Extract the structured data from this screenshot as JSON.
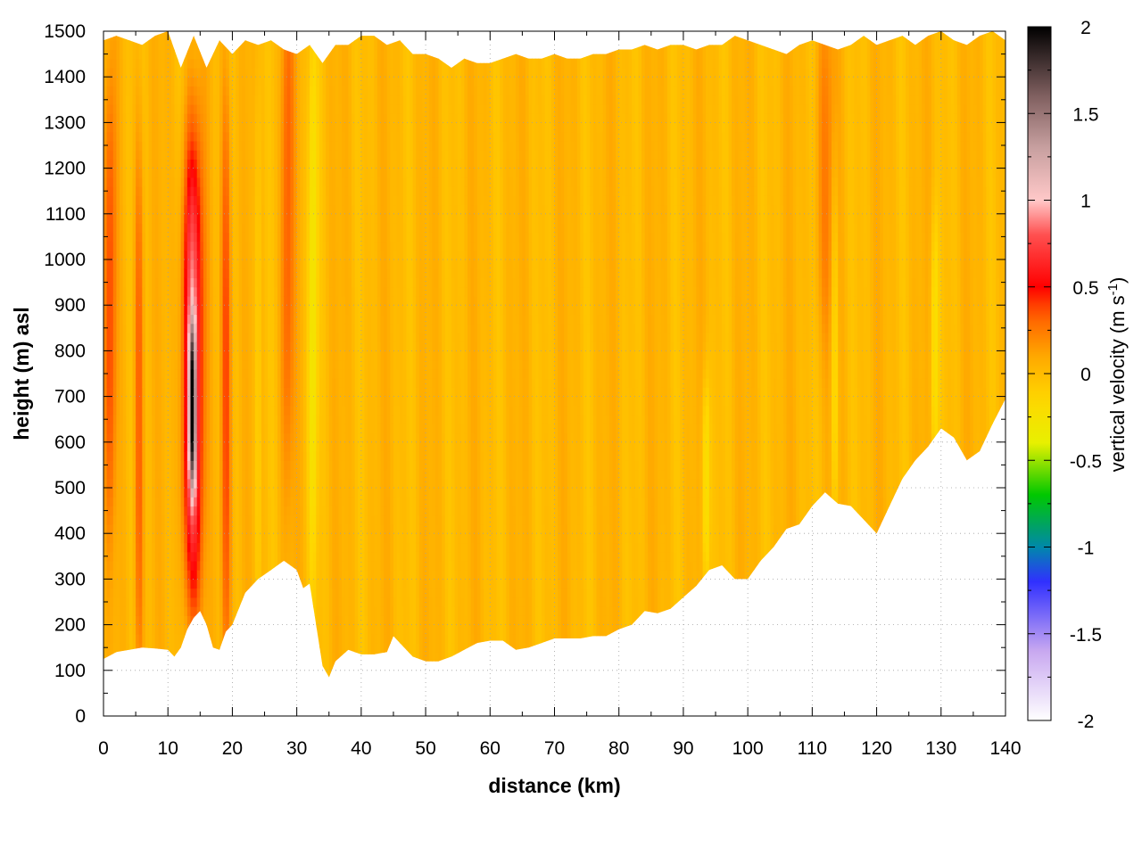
{
  "chart_data": {
    "type": "heatmap",
    "title": "",
    "xlabel": "distance (km)",
    "ylabel": "height (m) asl",
    "xlim": [
      0,
      140
    ],
    "ylim": [
      0,
      1500
    ],
    "x_ticks": [
      "0",
      "10",
      "20",
      "30",
      "40",
      "50",
      "60",
      "70",
      "80",
      "90",
      "100",
      "110",
      "120",
      "130",
      "140"
    ],
    "y_ticks": [
      "0",
      "100",
      "200",
      "300",
      "400",
      "500",
      "600",
      "700",
      "800",
      "900",
      "1000",
      "1100",
      "1200",
      "1300",
      "1400",
      "1500"
    ],
    "grid": true,
    "colorbar": {
      "label_main": "vertical velocity (m s",
      "label_sup": "-1",
      "label_close": ")",
      "range": [
        -2,
        2
      ],
      "ticks": [
        "-2",
        "-1.5",
        "-1",
        "-0.5",
        "0",
        "0.5",
        "1",
        "1.5",
        "2"
      ],
      "stops": [
        {
          "v": -2.0,
          "color": "#ffffff"
        },
        {
          "v": -1.6,
          "color": "#c8a8f0"
        },
        {
          "v": -1.2,
          "color": "#3030ff"
        },
        {
          "v": -1.0,
          "color": "#0088aa"
        },
        {
          "v": -0.7,
          "color": "#00c800"
        },
        {
          "v": -0.4,
          "color": "#e8f000"
        },
        {
          "v": -0.15,
          "color": "#ffd700"
        },
        {
          "v": 0.1,
          "color": "#ffa800"
        },
        {
          "v": 0.35,
          "color": "#ff5a00"
        },
        {
          "v": 0.5,
          "color": "#ff0000"
        },
        {
          "v": 0.8,
          "color": "#ff5050"
        },
        {
          "v": 1.0,
          "color": "#ffc8c8"
        },
        {
          "v": 1.3,
          "color": "#c8a0a0"
        },
        {
          "v": 1.6,
          "color": "#806060"
        },
        {
          "v": 2.0,
          "color": "#000000"
        }
      ]
    },
    "bottom_boundary": [
      [
        0,
        125
      ],
      [
        2,
        140
      ],
      [
        4,
        145
      ],
      [
        6,
        150
      ],
      [
        8,
        148
      ],
      [
        10,
        145
      ],
      [
        11,
        130
      ],
      [
        12,
        150
      ],
      [
        13,
        190
      ],
      [
        14,
        215
      ],
      [
        15,
        230
      ],
      [
        16,
        200
      ],
      [
        17,
        150
      ],
      [
        18,
        145
      ],
      [
        19,
        185
      ],
      [
        20,
        200
      ],
      [
        22,
        270
      ],
      [
        24,
        300
      ],
      [
        26,
        320
      ],
      [
        28,
        340
      ],
      [
        30,
        320
      ],
      [
        31,
        280
      ],
      [
        32,
        290
      ],
      [
        33,
        200
      ],
      [
        34,
        110
      ],
      [
        35,
        85
      ],
      [
        36,
        120
      ],
      [
        38,
        145
      ],
      [
        40,
        135
      ],
      [
        42,
        135
      ],
      [
        44,
        140
      ],
      [
        45,
        175
      ],
      [
        46,
        160
      ],
      [
        48,
        130
      ],
      [
        50,
        120
      ],
      [
        52,
        120
      ],
      [
        54,
        130
      ],
      [
        56,
        145
      ],
      [
        58,
        160
      ],
      [
        60,
        165
      ],
      [
        62,
        165
      ],
      [
        64,
        145
      ],
      [
        66,
        150
      ],
      [
        68,
        160
      ],
      [
        70,
        170
      ],
      [
        72,
        170
      ],
      [
        74,
        170
      ],
      [
        76,
        175
      ],
      [
        78,
        175
      ],
      [
        80,
        190
      ],
      [
        82,
        200
      ],
      [
        84,
        230
      ],
      [
        86,
        225
      ],
      [
        88,
        235
      ],
      [
        90,
        260
      ],
      [
        92,
        285
      ],
      [
        94,
        320
      ],
      [
        96,
        330
      ],
      [
        98,
        300
      ],
      [
        100,
        300
      ],
      [
        102,
        340
      ],
      [
        104,
        370
      ],
      [
        106,
        410
      ],
      [
        108,
        420
      ],
      [
        110,
        460
      ],
      [
        112,
        490
      ],
      [
        114,
        465
      ],
      [
        116,
        460
      ],
      [
        118,
        430
      ],
      [
        120,
        400
      ],
      [
        122,
        460
      ],
      [
        124,
        520
      ],
      [
        126,
        560
      ],
      [
        128,
        590
      ],
      [
        130,
        630
      ],
      [
        132,
        610
      ],
      [
        134,
        560
      ],
      [
        136,
        580
      ],
      [
        138,
        640
      ],
      [
        140,
        695
      ]
    ],
    "top_boundary": [
      [
        0,
        1480
      ],
      [
        2,
        1490
      ],
      [
        4,
        1480
      ],
      [
        6,
        1470
      ],
      [
        8,
        1490
      ],
      [
        10,
        1500
      ],
      [
        12,
        1420
      ],
      [
        14,
        1490
      ],
      [
        16,
        1420
      ],
      [
        18,
        1480
      ],
      [
        20,
        1450
      ],
      [
        22,
        1480
      ],
      [
        24,
        1470
      ],
      [
        26,
        1480
      ],
      [
        28,
        1460
      ],
      [
        30,
        1450
      ],
      [
        32,
        1470
      ],
      [
        34,
        1430
      ],
      [
        36,
        1470
      ],
      [
        38,
        1470
      ],
      [
        40,
        1490
      ],
      [
        42,
        1490
      ],
      [
        44,
        1470
      ],
      [
        46,
        1480
      ],
      [
        48,
        1450
      ],
      [
        50,
        1450
      ],
      [
        52,
        1440
      ],
      [
        54,
        1420
      ],
      [
        56,
        1440
      ],
      [
        58,
        1430
      ],
      [
        60,
        1430
      ],
      [
        62,
        1440
      ],
      [
        64,
        1450
      ],
      [
        66,
        1440
      ],
      [
        68,
        1440
      ],
      [
        70,
        1450
      ],
      [
        72,
        1440
      ],
      [
        74,
        1440
      ],
      [
        76,
        1450
      ],
      [
        78,
        1450
      ],
      [
        80,
        1460
      ],
      [
        82,
        1460
      ],
      [
        84,
        1470
      ],
      [
        86,
        1460
      ],
      [
        88,
        1470
      ],
      [
        90,
        1470
      ],
      [
        92,
        1460
      ],
      [
        94,
        1470
      ],
      [
        96,
        1470
      ],
      [
        98,
        1490
      ],
      [
        100,
        1480
      ],
      [
        102,
        1470
      ],
      [
        104,
        1460
      ],
      [
        106,
        1450
      ],
      [
        108,
        1470
      ],
      [
        110,
        1480
      ],
      [
        112,
        1470
      ],
      [
        114,
        1460
      ],
      [
        116,
        1470
      ],
      [
        118,
        1490
      ],
      [
        120,
        1470
      ],
      [
        122,
        1480
      ],
      [
        124,
        1490
      ],
      [
        126,
        1470
      ],
      [
        128,
        1490
      ],
      [
        130,
        1500
      ],
      [
        132,
        1480
      ],
      [
        134,
        1470
      ],
      [
        136,
        1490
      ],
      [
        138,
        1500
      ],
      [
        140,
        1480
      ]
    ],
    "field_features": [
      {
        "kind": "updraft_core",
        "x": 13.8,
        "y_center": 760,
        "y_halfwidth": 520,
        "x_halfwidth": 1.5,
        "peak": 0.9
      },
      {
        "kind": "updraft_core",
        "x": 13.8,
        "y_center": 680,
        "y_halfwidth": 180,
        "x_halfwidth": 0.5,
        "peak": 1.15
      },
      {
        "kind": "updraft_band",
        "x": 19.0,
        "y_center": 700,
        "y_halfwidth": 700,
        "x_halfwidth": 0.8,
        "peak": 0.42
      },
      {
        "kind": "updraft_band",
        "x": 5.5,
        "y_center": 650,
        "y_halfwidth": 650,
        "x_halfwidth": 0.7,
        "peak": 0.35
      },
      {
        "kind": "updraft_band",
        "x": 1.0,
        "y_center": 900,
        "y_halfwidth": 500,
        "x_halfwidth": 0.9,
        "peak": 0.35
      },
      {
        "kind": "updraft_band",
        "x": 28.5,
        "y_center": 1100,
        "y_halfwidth": 600,
        "x_halfwidth": 1.0,
        "peak": 0.3
      },
      {
        "kind": "updraft_band",
        "x": 112.0,
        "y_center": 1200,
        "y_halfwidth": 400,
        "x_halfwidth": 1.5,
        "peak": 0.2
      },
      {
        "kind": "downdraft_band",
        "x": 32.5,
        "y_center": 900,
        "y_halfwidth": 600,
        "x_halfwidth": 0.7,
        "peak": -0.3
      },
      {
        "kind": "downdraft_band",
        "x": 93.5,
        "y_center": 500,
        "y_halfwidth": 250,
        "x_halfwidth": 0.6,
        "peak": -0.3
      },
      {
        "kind": "downdraft_band",
        "x": 113.5,
        "y_center": 800,
        "y_halfwidth": 400,
        "x_halfwidth": 0.5,
        "peak": -0.25
      },
      {
        "kind": "downdraft_band",
        "x": 24.0,
        "y_center": 800,
        "y_halfwidth": 700,
        "x_halfwidth": 0.5,
        "peak": -0.15
      },
      {
        "kind": "downdraft_band",
        "x": 129.0,
        "y_center": 800,
        "y_halfwidth": 300,
        "x_halfwidth": 0.6,
        "peak": -0.25
      }
    ],
    "background_value": 0.02
  }
}
